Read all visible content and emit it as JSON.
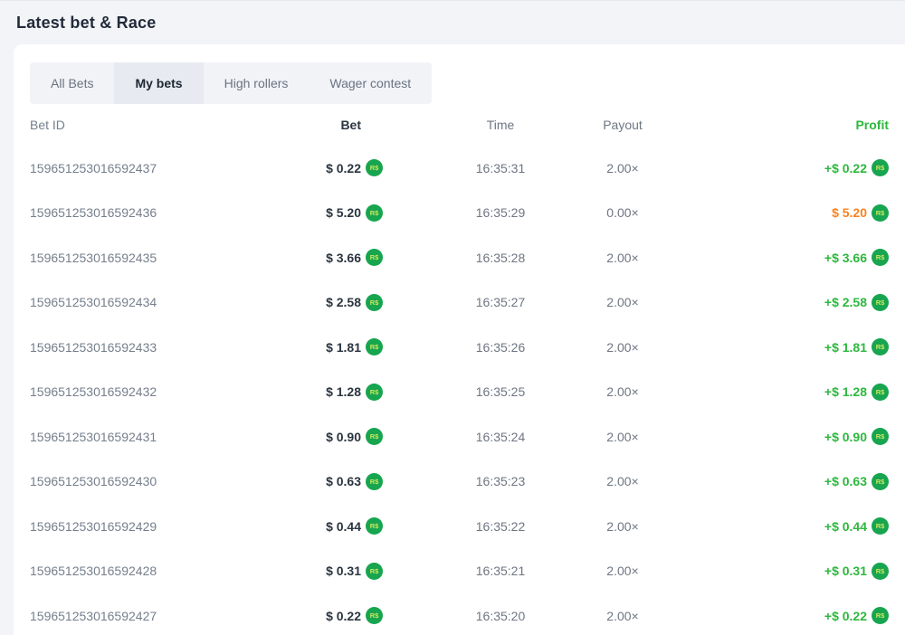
{
  "header": {
    "title": "Latest bet & Race"
  },
  "tabs": [
    {
      "label": "All Bets",
      "active": false
    },
    {
      "label": "My bets",
      "active": true
    },
    {
      "label": "High rollers",
      "active": false
    },
    {
      "label": "Wager contest",
      "active": false
    }
  ],
  "currency": {
    "coin_label": "R$"
  },
  "colors": {
    "profit_win": "#2db83d",
    "profit_loss": "#f8821f",
    "coin_bg": "#17a550"
  },
  "table": {
    "columns": [
      "Bet ID",
      "Bet",
      "Time",
      "Payout",
      "Profit"
    ],
    "rows": [
      {
        "id": "159651253016592437",
        "bet": "$ 0.22",
        "time": "16:35:31",
        "payout": "2.00×",
        "profit": "+$ 0.22",
        "status": "win"
      },
      {
        "id": "159651253016592436",
        "bet": "$ 5.20",
        "time": "16:35:29",
        "payout": "0.00×",
        "profit": "$ 5.20",
        "status": "loss"
      },
      {
        "id": "159651253016592435",
        "bet": "$ 3.66",
        "time": "16:35:28",
        "payout": "2.00×",
        "profit": "+$ 3.66",
        "status": "win"
      },
      {
        "id": "159651253016592434",
        "bet": "$ 2.58",
        "time": "16:35:27",
        "payout": "2.00×",
        "profit": "+$ 2.58",
        "status": "win"
      },
      {
        "id": "159651253016592433",
        "bet": "$ 1.81",
        "time": "16:35:26",
        "payout": "2.00×",
        "profit": "+$ 1.81",
        "status": "win"
      },
      {
        "id": "159651253016592432",
        "bet": "$ 1.28",
        "time": "16:35:25",
        "payout": "2.00×",
        "profit": "+$ 1.28",
        "status": "win"
      },
      {
        "id": "159651253016592431",
        "bet": "$ 0.90",
        "time": "16:35:24",
        "payout": "2.00×",
        "profit": "+$ 0.90",
        "status": "win"
      },
      {
        "id": "159651253016592430",
        "bet": "$ 0.63",
        "time": "16:35:23",
        "payout": "2.00×",
        "profit": "+$ 0.63",
        "status": "win"
      },
      {
        "id": "159651253016592429",
        "bet": "$ 0.44",
        "time": "16:35:22",
        "payout": "2.00×",
        "profit": "+$ 0.44",
        "status": "win"
      },
      {
        "id": "159651253016592428",
        "bet": "$ 0.31",
        "time": "16:35:21",
        "payout": "2.00×",
        "profit": "+$ 0.31",
        "status": "win"
      },
      {
        "id": "159651253016592427",
        "bet": "$ 0.22",
        "time": "16:35:20",
        "payout": "2.00×",
        "profit": "+$ 0.22",
        "status": "win"
      }
    ]
  }
}
